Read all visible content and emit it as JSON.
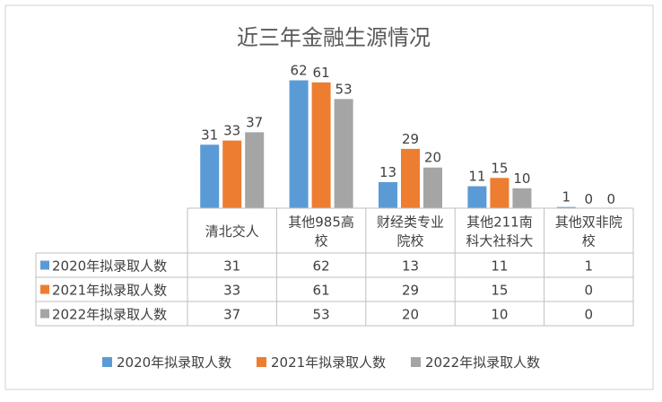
{
  "chart_data": {
    "type": "bar",
    "title": "近三年金融生源情况",
    "categories": [
      "清北交人",
      "其他985高校",
      "财经类专业院校",
      "其他211南科大社科大",
      "其他双非院校"
    ],
    "category_lines": [
      [
        "清北交人"
      ],
      [
        "其他985高",
        "校"
      ],
      [
        "财经类专业",
        "院校"
      ],
      [
        "其他211南",
        "科大社科大"
      ],
      [
        "其他双非院",
        "校"
      ]
    ],
    "series": [
      {
        "name": "2020年拟录取人数",
        "color": "#5B9BD5",
        "values": [
          31,
          62,
          13,
          11,
          1
        ]
      },
      {
        "name": "2021年拟录取人数",
        "color": "#ED7D31",
        "values": [
          33,
          61,
          29,
          15,
          0
        ]
      },
      {
        "name": "2022年拟录取人数",
        "color": "#A5A5A5",
        "values": [
          37,
          53,
          20,
          10,
          0
        ]
      }
    ],
    "ylim": [
      0,
      70
    ],
    "grid": false,
    "legend": "bottom",
    "data_table": true
  }
}
